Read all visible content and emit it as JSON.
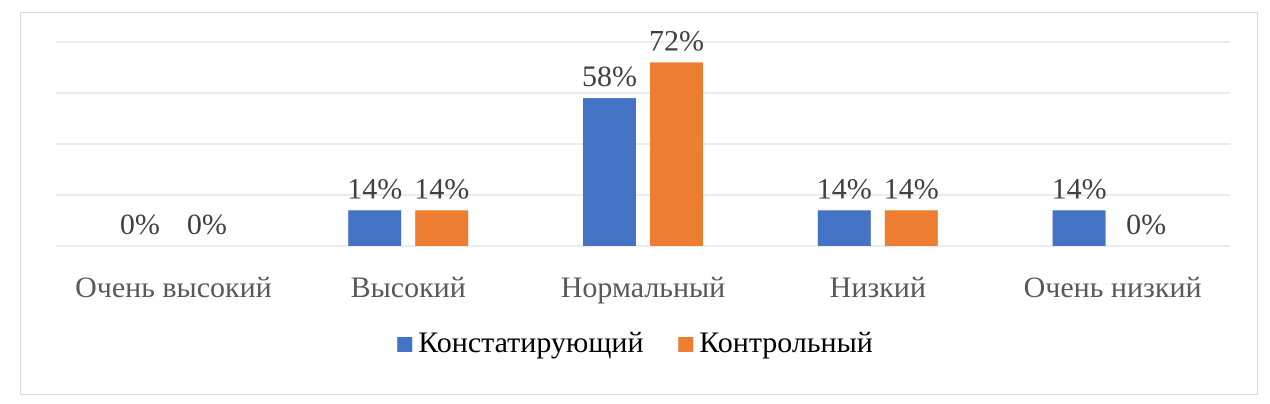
{
  "chart_data": {
    "type": "bar",
    "categories": [
      "Очень высокий",
      "Высокий",
      "Нормальный",
      "Низкий",
      "Очень низкий"
    ],
    "series": [
      {
        "name": "Констатирующий",
        "values": [
          0,
          14,
          58,
          14,
          14
        ],
        "labels": [
          "0%",
          "14%",
          "58%",
          "14%",
          "14%"
        ],
        "color": "#4472C4"
      },
      {
        "name": "Контрольный",
        "values": [
          0,
          14,
          72,
          14,
          0
        ],
        "labels": [
          "0%",
          "14%",
          "72%",
          "14%",
          "0%"
        ],
        "color": "#ED7D31"
      }
    ],
    "ylim": [
      0,
      80
    ],
    "grid": true,
    "legend": "bottom",
    "title": "",
    "xlabel": "",
    "ylabel": ""
  }
}
